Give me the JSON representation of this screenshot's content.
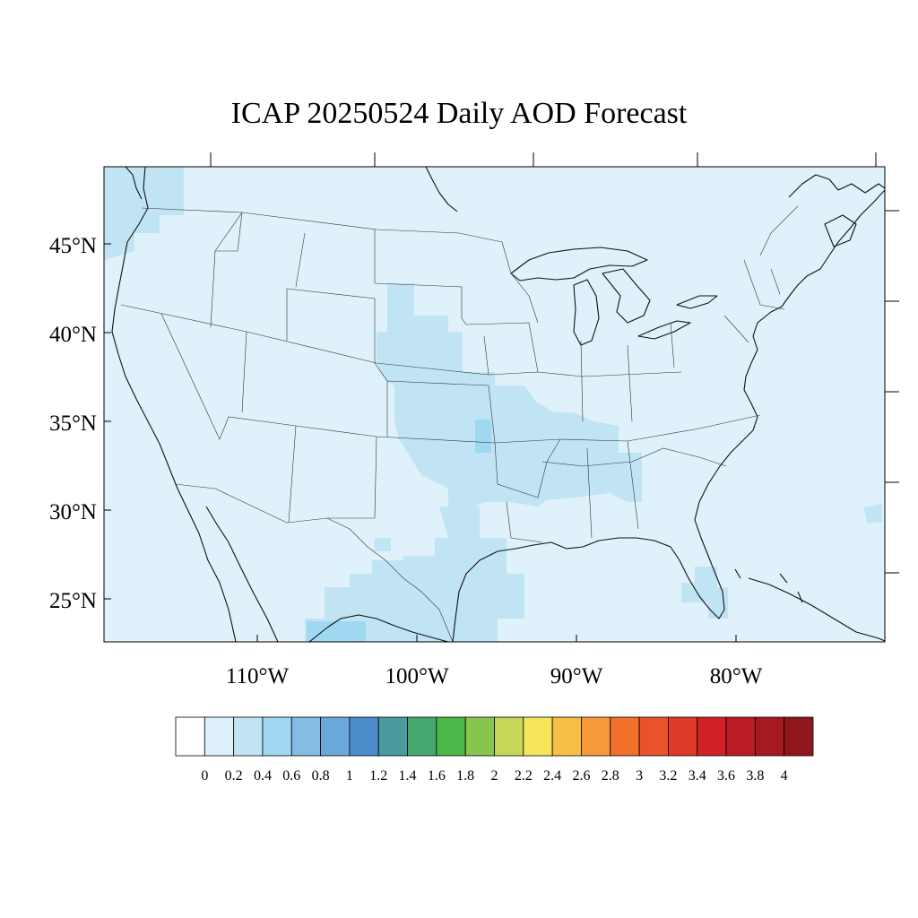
{
  "title": "ICAP 20250524 Daily AOD Forecast",
  "map": {
    "lat_labels": [
      "45°N",
      "40°N",
      "35°N",
      "30°N",
      "25°N"
    ],
    "lon_labels": [
      "110°W",
      "100°W",
      "90°W",
      "80°W"
    ],
    "background_level": "0-0.2",
    "colors": {
      "ocean_land_base": "#dff1fa",
      "level_0_2_0_4": "#c1e4f5",
      "level_0_4_0_6": "#a0d7f1"
    }
  },
  "colorbar": {
    "labels": [
      "0",
      "0.2",
      "0.4",
      "0.6",
      "0.8",
      "1",
      "1.2",
      "1.4",
      "1.6",
      "1.8",
      "2",
      "2.2",
      "2.4",
      "2.6",
      "2.8",
      "3",
      "3.2",
      "3.4",
      "3.6",
      "3.8",
      "4"
    ],
    "colors": [
      "#ffffff",
      "#dff1fa",
      "#c1e4f5",
      "#a0d7f1",
      "#84bce3",
      "#6aa7da",
      "#4a8dc9",
      "#4a9a9f",
      "#46a86f",
      "#4cb748",
      "#87c54d",
      "#c5d658",
      "#f7e55c",
      "#f8bf47",
      "#f79a3b",
      "#f1702c",
      "#e9532a",
      "#dd3a28",
      "#d11f28",
      "#bb1b25",
      "#a5191f",
      "#8f161b"
    ]
  }
}
